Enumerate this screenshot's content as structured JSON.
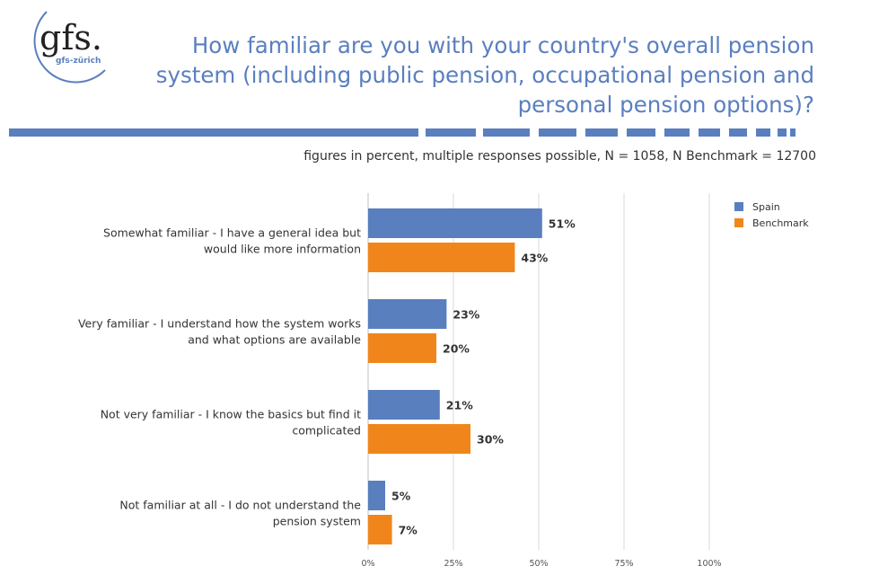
{
  "logo": {
    "text": "gfs.",
    "subtext": "gfs-zürich",
    "color": "#5a7fbf"
  },
  "title": "How familiar are you with your country's overall pension system (including public pension, occupational pension and personal pension options)?",
  "subtitle": "figures in percent, multiple responses possible, N = 1058, N Benchmark = 12700",
  "chart_data": {
    "type": "bar",
    "orientation": "horizontal",
    "categories": [
      [
        "Somewhat familiar - I have a general idea but",
        "would like more information"
      ],
      [
        "Very familiar - I understand how the system works",
        "and what options are available"
      ],
      [
        "Not very familiar - I know the basics but find it",
        "complicated"
      ],
      [
        "Not familiar at all - I do not understand the",
        "pension system"
      ]
    ],
    "series": [
      {
        "name": "Spain",
        "values": [
          51,
          23,
          21,
          5
        ],
        "labels": [
          "51%",
          "23%",
          "21%",
          "5%"
        ],
        "color": "#5a7fbf"
      },
      {
        "name": "Benchmark",
        "values": [
          43,
          20,
          30,
          7
        ],
        "labels": [
          "43%",
          "20%",
          "30%",
          "7%"
        ],
        "color": "#f0861b"
      }
    ],
    "xlim": [
      0,
      100
    ],
    "xticks": [
      0,
      25,
      50,
      75,
      100
    ],
    "xtick_labels": [
      "0%",
      "25%",
      "50%",
      "75%",
      "100%"
    ],
    "grid": true,
    "legend": "top-right"
  }
}
